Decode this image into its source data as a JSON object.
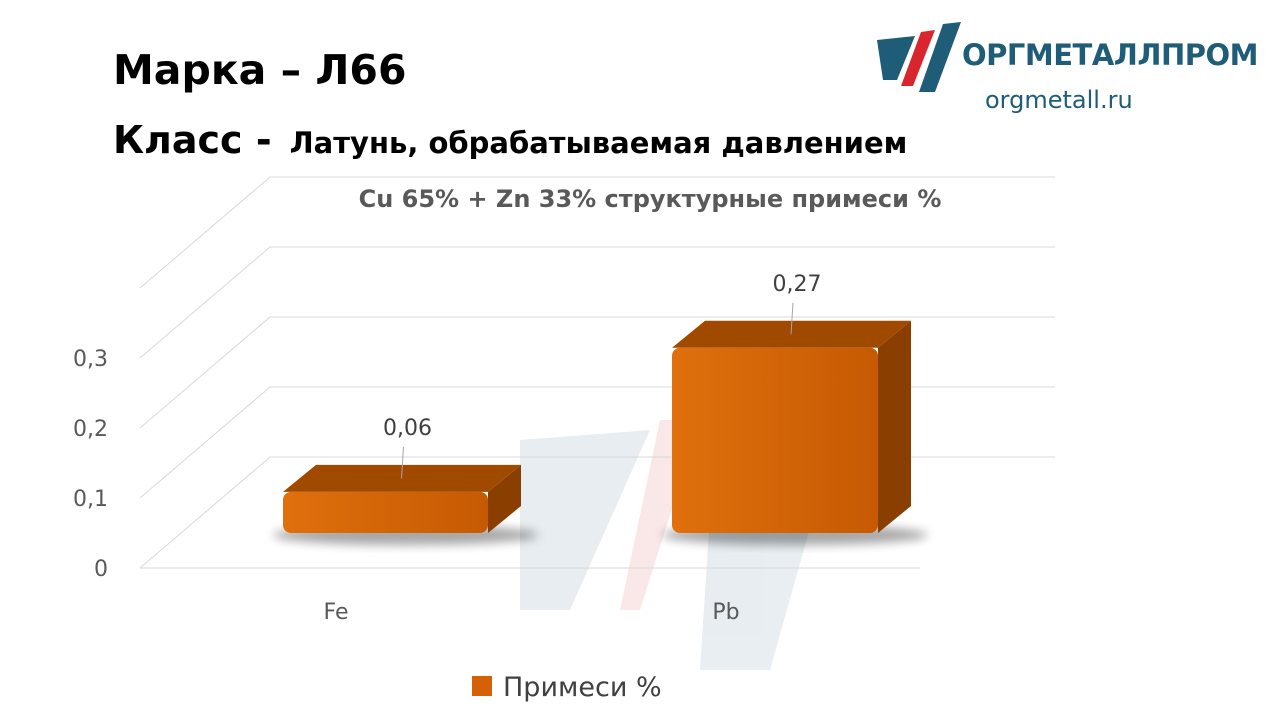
{
  "header": {
    "marka": "Марка – Л66",
    "klass_label": "Класс -",
    "klass_value": "Латунь, обрабатываемая давлением"
  },
  "logo": {
    "brand": "ОРГМЕТАЛЛПРОМ",
    "site": "orgmetall.ru",
    "color_primary": "#1f5c78",
    "color_accent": "#d9262c"
  },
  "chart_data": {
    "type": "bar",
    "title": "Cu 65% + Zn 33% структурные примеси %",
    "categories": [
      "Fe",
      "Pb"
    ],
    "series": [
      {
        "name": "Примеси %",
        "values": [
          0.06,
          0.27
        ],
        "labels": [
          "0,06",
          "0,27"
        ],
        "color": "#d46205"
      }
    ],
    "ylim": [
      0,
      0.3
    ],
    "yticks": [
      0,
      0.1,
      0.2,
      0.3
    ],
    "ytick_labels": [
      "0",
      "0,1",
      "0,2",
      "0,3"
    ],
    "grid": true,
    "legend_position": "bottom",
    "style": "3d-column"
  }
}
